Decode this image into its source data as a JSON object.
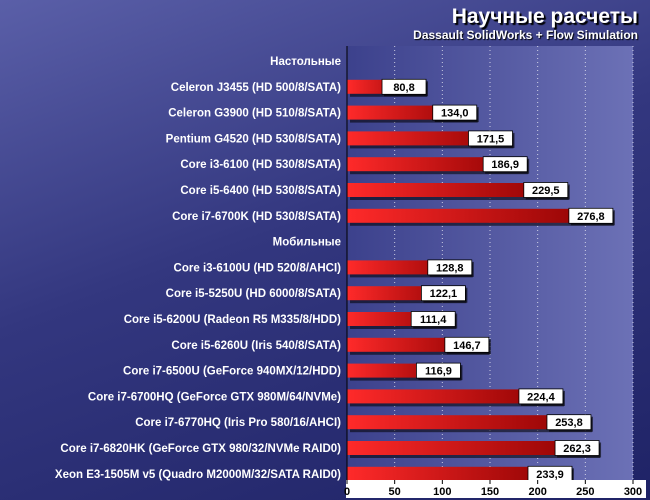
{
  "chart_data": {
    "type": "bar",
    "orientation": "horizontal",
    "title": "Научные расчеты",
    "subtitle": "Dassault SolidWorks + Flow Simulation",
    "xlim": [
      0,
      300
    ],
    "x_ticks": [
      "0",
      "50",
      "100",
      "150",
      "200",
      "250",
      "300"
    ],
    "grid": true,
    "rows": [
      {
        "kind": "group",
        "label": "Настольные"
      },
      {
        "kind": "bar",
        "label": "Celeron J3455 (HD 500/8/SATA)",
        "value": 80.8,
        "value_label": "80,8"
      },
      {
        "kind": "bar",
        "label": "Celeron G3900 (HD 510/8/SATA)",
        "value": 134.0,
        "value_label": "134,0"
      },
      {
        "kind": "bar",
        "label": "Pentium G4520 (HD 530/8/SATA)",
        "value": 171.5,
        "value_label": "171,5"
      },
      {
        "kind": "bar",
        "label": "Core i3-6100 (HD 530/8/SATA)",
        "value": 186.9,
        "value_label": "186,9"
      },
      {
        "kind": "bar",
        "label": "Core i5-6400 (HD 530/8/SATA)",
        "value": 229.5,
        "value_label": "229,5"
      },
      {
        "kind": "bar",
        "label": "Core i7-6700K (HD 530/8/SATA)",
        "value": 276.8,
        "value_label": "276,8"
      },
      {
        "kind": "group",
        "label": "Мобильные"
      },
      {
        "kind": "bar",
        "label": "Core i3-6100U (HD 520/8/AHCI)",
        "value": 128.8,
        "value_label": "128,8"
      },
      {
        "kind": "bar",
        "label": "Core i5-5250U (HD 6000/8/SATA)",
        "value": 122.1,
        "value_label": "122,1"
      },
      {
        "kind": "bar",
        "label": "Core i5-6200U (Radeon R5 M335/8/HDD)",
        "value": 111.4,
        "value_label": "111,4"
      },
      {
        "kind": "bar",
        "label": "Core i5-6260U (Iris 540/8/SATA)",
        "value": 146.7,
        "value_label": "146,7"
      },
      {
        "kind": "bar",
        "label": "Core i7-6500U (GeForce 940MX/12/HDD)",
        "value": 116.9,
        "value_label": "116,9"
      },
      {
        "kind": "bar",
        "label": "Core i7-6700HQ (GeForce GTX 980M/64/NVMe)",
        "value": 224.4,
        "value_label": "224,4"
      },
      {
        "kind": "bar",
        "label": "Core i7-6770HQ (Iris Pro 580/16/AHCI)",
        "value": 253.8,
        "value_label": "253,8"
      },
      {
        "kind": "bar",
        "label": "Core i7-6820HK (GeForce GTX 980/32/NVMe RAID0)",
        "value": 262.3,
        "value_label": "262,3"
      },
      {
        "kind": "bar",
        "label": "Xeon E3-1505M v5 (Quadro M2000M/32/SATA RAID0)",
        "value": 233.9,
        "value_label": "233,9"
      }
    ],
    "colors": {
      "bar_light": "#ff2a2a",
      "bar_dark": "#8a0000",
      "plot_bg": "#5b60a6",
      "grid": "#ffffff",
      "value_box": "#ffffff"
    }
  }
}
